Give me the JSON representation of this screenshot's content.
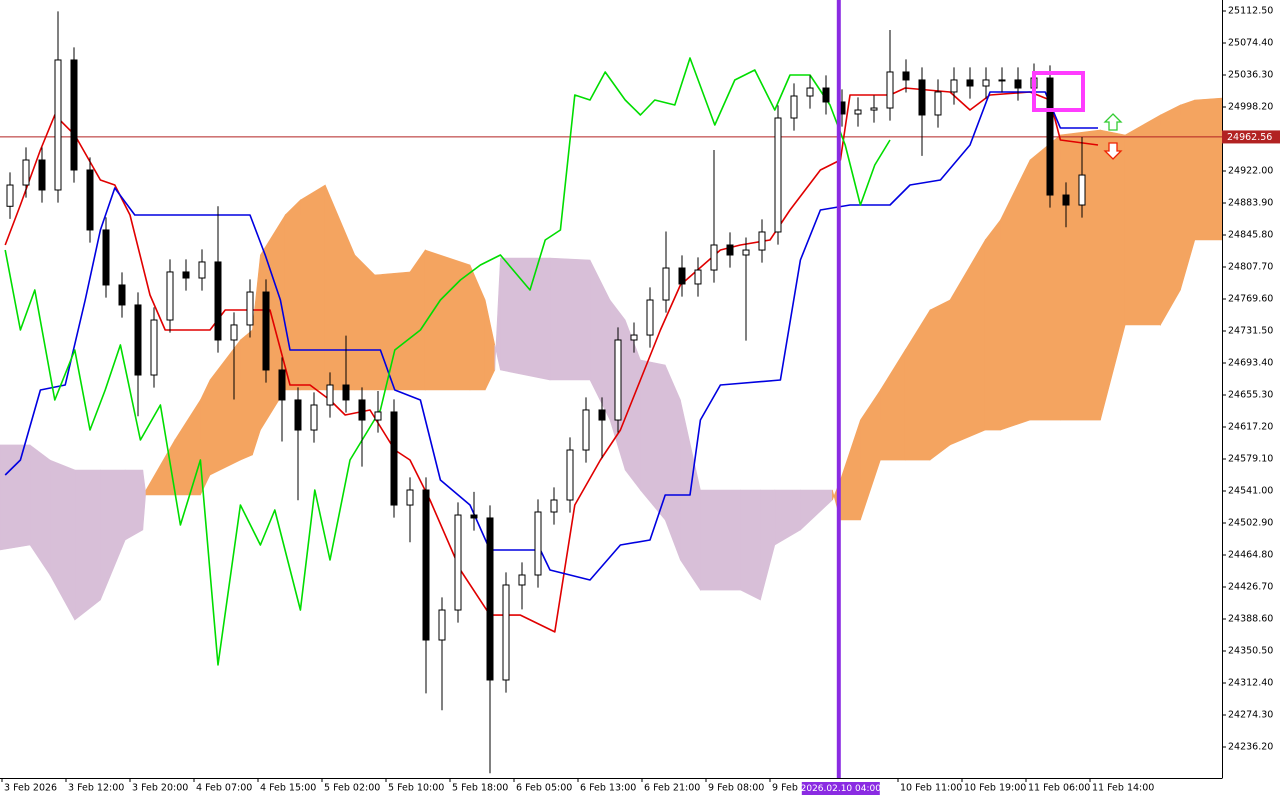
{
  "chart_data": {
    "type": "candlestick",
    "xlim": [
      -0.25,
      152.5
    ],
    "ylim": [
      24199.3,
      25125.6
    ],
    "up_color": "#ffffff",
    "down_color": "#000000",
    "x": [
      1,
      3,
      5,
      7,
      9,
      11,
      13,
      15,
      17,
      19,
      21,
      23,
      25,
      27,
      29,
      31,
      33,
      35,
      37,
      39,
      41,
      43,
      45,
      47,
      49,
      51,
      53,
      55,
      57,
      59,
      61,
      63,
      65,
      67,
      69,
      71,
      73,
      75,
      77,
      79,
      81,
      83,
      85,
      87,
      89,
      91,
      93,
      95,
      97,
      99,
      101,
      103,
      105,
      107,
      109,
      111,
      113,
      115,
      117,
      119,
      121,
      123,
      125,
      127,
      129,
      131,
      133,
      135
    ],
    "open": [
      24880.0,
      24905.3,
      24935.1,
      24899.4,
      25054.2,
      24923.2,
      24851.8,
      24786.3,
      24762.5,
      24679.1,
      24744.6,
      24801.8,
      24794.6,
      24813.7,
      24720.8,
      24738.7,
      24777.9,
      24685.1,
      24649.4,
      24613.6,
      24643.4,
      24667.2,
      24649.4,
      24625.5,
      24635.1,
      24524.3,
      24542.2,
      24363.6,
      24399.3,
      24512.4,
      24508.9,
      24316.0,
      24429.1,
      24441.0,
      24516.0,
      24530.3,
      24589.8,
      24637.5,
      24625.5,
      24720.8,
      24726.7,
      24768.4,
      24806.5,
      24787.5,
      24804.1,
      24833.9,
      24822.0,
      24827.9,
      24849.4,
      24985.1,
      25011.3,
      25020.8,
      25004.2,
      24989.9,
      24994.6,
      24997.0,
      25039.9,
      25030.4,
      24988.7,
      25016.1,
      25030.4,
      25023.2,
      25030.4,
      25030.4,
      25020.8,
      25032.7,
      24893.4,
      24881.5
    ],
    "high": [
      24920.3,
      24950.1,
      24950.1,
      25112.0,
      25069.2,
      24938.2,
      24866.8,
      24801.3,
      24777.5,
      24759.6,
      24816.8,
      24816.8,
      24828.7,
      24880.0,
      24753.7,
      24792.9,
      24792.9,
      24700.1,
      24664.4,
      24658.4,
      24682.2,
      24726.0,
      24664.4,
      24660.0,
      24650.1,
      24557.2,
      24557.2,
      24414.3,
      24527.4,
      24540.0,
      24523.9,
      24444.1,
      24456.0,
      24531.0,
      24545.3,
      24604.8,
      24652.5,
      24652.5,
      24735.8,
      24741.7,
      24783.4,
      24850.0,
      24821.5,
      24819.1,
      24947.0,
      24848.9,
      24842.9,
      24864.4,
      25000.1,
      25026.3,
      25035.8,
      25035.8,
      25019.2,
      25009.6,
      25012.0,
      25089.9,
      25054.9,
      25045.4,
      25031.1,
      25045.4,
      25045.4,
      25045.4,
      25045.4,
      25045.4,
      25050.0,
      25047.7,
      24908.4,
      24962.5
    ],
    "low": [
      24865.0,
      24890.3,
      24884.4,
      24884.4,
      24908.2,
      24836.8,
      24771.3,
      24747.5,
      24630.0,
      24664.1,
      24729.6,
      24779.6,
      24779.6,
      24705.8,
      24650.0,
      24723.7,
      24670.1,
      24600.0,
      24530.0,
      24598.6,
      24628.4,
      24634.4,
      24570.0,
      24610.5,
      24509.3,
      24480.0,
      24300.0,
      24280.0,
      24384.3,
      24493.9,
      24205.0,
      24301.0,
      24400.0,
      24426.0,
      24501.0,
      24515.3,
      24574.8,
      24580.0,
      24610.5,
      24705.8,
      24711.7,
      24753.4,
      24772.5,
      24772.5,
      24789.1,
      24807.0,
      24720.0,
      24812.9,
      24834.4,
      24970.1,
      24996.3,
      24989.2,
      24974.9,
      24974.9,
      24979.6,
      24982.0,
      25015.4,
      24940.0,
      24973.7,
      25001.1,
      25008.2,
      25008.2,
      25015.4,
      25005.8,
      25005.8,
      24878.4,
      24855.0,
      24866.5
    ],
    "close": [
      24905.3,
      24935.1,
      24899.4,
      25054.2,
      24923.2,
      24851.8,
      24786.3,
      24762.5,
      24679.1,
      24744.6,
      24801.8,
      24794.6,
      24813.7,
      24720.8,
      24738.7,
      24777.9,
      24685.1,
      24649.4,
      24613.6,
      24643.4,
      24667.2,
      24649.4,
      24625.5,
      24635.1,
      24524.3,
      24542.2,
      24363.6,
      24399.3,
      24512.4,
      24508.9,
      24316.0,
      24429.1,
      24441.0,
      24516.0,
      24530.3,
      24589.8,
      24637.5,
      24625.5,
      24720.8,
      24726.7,
      24768.4,
      24806.5,
      24787.5,
      24804.1,
      24833.9,
      24822.0,
      24827.9,
      24849.4,
      24985.1,
      25011.3,
      25020.8,
      25004.2,
      24989.9,
      24994.6,
      24997.0,
      25039.9,
      25030.4,
      24988.7,
      25016.1,
      25030.4,
      25023.2,
      25030.4,
      25030.4,
      25020.8,
      25032.7,
      24893.4,
      24881.5,
      24917.2
    ],
    "cloud": {
      "bull_color": "#f4a460",
      "bear_color": "#d8bfd8",
      "x": [
        -0.25,
        3.5,
        6,
        9.1,
        12.3,
        15.4,
        17.6,
        18,
        21.6,
        24.8,
        26,
        29.8,
        31.3,
        32.3,
        35.4,
        37.3,
        40.4,
        44.1,
        46.6,
        51,
        52.9,
        58.5,
        60.4,
        61.6,
        62.3,
        68.5,
        73.5,
        76,
        77.9,
        79.8,
        82.9,
        84.8,
        87.3,
        92.3,
        94.8,
        96.6,
        99.8,
        103.8,
        104.8,
        107.3,
        109.8,
        112.9,
        116,
        118.5,
        122.9,
        124.8,
        128.5,
        132.3,
        137.3,
        140.4,
        144.8,
        147.3,
        149.1,
        152.5
      ],
      "span_a": [
        24470.8,
        24476.7,
        24441.0,
        24387.4,
        24411.2,
        24482.7,
        24494.6,
        24542.2,
        24601.7,
        24649.4,
        24673.2,
        24720.8,
        24732.7,
        24822.0,
        24869.6,
        24887.5,
        24905.3,
        24822.0,
        24798.2,
        24801.8,
        24827.9,
        24810.1,
        24768.4,
        24714.9,
        24685.1,
        24673.2,
        24673.2,
        24625.5,
        24566.0,
        24542.2,
        24506.5,
        24458.9,
        24423.1,
        24423.1,
        24411.2,
        24476.7,
        24494.6,
        24530.3,
        24554.1,
        24625.5,
        24661.3,
        24708.9,
        24756.5,
        24768.4,
        24839.9,
        24863.7,
        24935.1,
        24964.9,
        24970.8,
        24964.9,
        24988.7,
        25000.6,
        25006.5,
        25008.9
      ],
      "span_b": [
        24595.8,
        24595.8,
        24577.9,
        24566.0,
        24566.0,
        24566.0,
        24566.0,
        24536.3,
        24536.3,
        24536.3,
        24560.1,
        24577.9,
        24583.9,
        24613.6,
        24661.3,
        24661.3,
        24661.3,
        24661.3,
        24661.3,
        24661.3,
        24661.3,
        24661.3,
        24661.3,
        24685.1,
        24818.4,
        24818.4,
        24816.0,
        24768.4,
        24744.6,
        24697.0,
        24691.0,
        24649.4,
        24542.2,
        24542.2,
        24542.2,
        24542.2,
        24542.2,
        24542.2,
        24506.5,
        24506.5,
        24577.9,
        24577.9,
        24577.9,
        24595.8,
        24613.6,
        24613.6,
        24625.5,
        24625.5,
        24625.5,
        24738.7,
        24738.7,
        24780.3,
        24839.9,
        24839.9
      ]
    },
    "lines": [
      {
        "color": "#e00000",
        "x": [
          0.4,
          2.3,
          4.8,
          6.6,
          9.1,
          12.3,
          14.1,
          16,
          18.5,
          20.4,
          26,
          27.9,
          33.5,
          36,
          38.5,
          41,
          42.9,
          46,
          49.1,
          51,
          53.5,
          57.3,
          61,
          64.8,
          69.1,
          71.6,
          74.8,
          77.3,
          79.8,
          82.3,
          84.8,
          89.8,
          92.3,
          96,
          98.5,
          102.3,
          104.8,
          106,
          111,
          112.9,
          118.5,
          121,
          123.5,
          128.5,
          131,
          132.3,
          137
        ],
        "values": [
          24833.9,
          24881.5,
          24947.0,
          24988.7,
          24964.9,
          24911.3,
          24905.3,
          24869.6,
          24774.4,
          24732.7,
          24732.7,
          24756.5,
          24756.5,
          24667.2,
          24667.2,
          24649.4,
          24631.5,
          24637.5,
          24589.8,
          24577.9,
          24530.3,
          24446.9,
          24393.2,
          24393.2,
          24373.2,
          24524.3,
          24577.9,
          24613.6,
          24673.2,
          24732.7,
          24786.3,
          24827.9,
          24833.9,
          24839.9,
          24875.6,
          24923.2,
          24935.1,
          25012.5,
          25012.5,
          25020.8,
          25016.1,
          24994.6,
          25012.5,
          25016.1,
          25006.5,
          24958.9,
          24953.0
        ]
      },
      {
        "color": "#0000e0",
        "x": [
          0.4,
          2.3,
          4.8,
          7.9,
          10.4,
          12.3,
          14.1,
          16.6,
          31,
          32.9,
          34.8,
          36,
          47.3,
          49.1,
          52.3,
          54.8,
          58.5,
          61,
          67.3,
          68.5,
          73.5,
          77.3,
          81,
          82.9,
          86,
          87.3,
          89.8,
          97.3,
          99.8,
          102.3,
          106,
          111,
          113.5,
          117.3,
          121,
          123.5,
          130.4,
          132.3,
          137
        ],
        "values": [
          24560.1,
          24577.9,
          24661.3,
          24667.2,
          24768.4,
          24851.8,
          24901.8,
          24869.6,
          24869.6,
          24822.0,
          24768.4,
          24708.9,
          24708.9,
          24661.3,
          24649.4,
          24554.1,
          24524.3,
          24470.8,
          24470.8,
          24447.0,
          24435.1,
          24476.7,
          24482.7,
          24536.3,
          24536.3,
          24625.5,
          24667.2,
          24673.2,
          24816.0,
          24875.6,
          24881.5,
          24881.5,
          24905.3,
          24911.3,
          24953.0,
          25016.1,
          25016.1,
          24973.2,
          24973.2
        ]
      },
      {
        "color": "#00dd00",
        "x": [
          0.4,
          2.3,
          4.1,
          6.6,
          9.1,
          11,
          12.9,
          14.8,
          17.3,
          19.8,
          22.3,
          24.8,
          27,
          29.8,
          32.3,
          34.1,
          37.3,
          39.1,
          41,
          43.5,
          47.3,
          49.1,
          52.3,
          54.8,
          57.3,
          59.8,
          62.3,
          66,
          67.9,
          69.8,
          71.6,
          73.5,
          75.4,
          77.9,
          79.8,
          81.6,
          84.1,
          86,
          89.1,
          91.6,
          94.1,
          96.6,
          98.5,
          101,
          103.5,
          105.4,
          107.3,
          109.1,
          111
        ],
        "values": [
          24828.0,
          24732.7,
          24780.3,
          24649.4,
          24708.9,
          24613.6,
          24661.3,
          24714.9,
          24601.7,
          24643.4,
          24500.5,
          24577.9,
          24333.9,
          24524.3,
          24476.7,
          24518.4,
          24399.3,
          24542.2,
          24458.9,
          24577.9,
          24637.5,
          24708.9,
          24732.7,
          24768.4,
          24792.2,
          24810.1,
          24822.0,
          24780.3,
          24839.9,
          24851.8,
          25012.5,
          25006.5,
          25039.9,
          25006.5,
          24988.7,
          25006.5,
          25000.6,
          25056.5,
          24976.8,
          25030.4,
          25042.3,
          24994.6,
          25036.3,
          25036.3,
          25000.6,
          24953.0,
          24881.5,
          24929.2,
          24958.9
        ]
      }
    ],
    "price_line": {
      "value": 24962.56,
      "color": "#b22222"
    },
    "vline": {
      "x": 104.6,
      "label": "2026.02.10 04:00",
      "color": "#8a2be2"
    },
    "yticks": [
      {
        "value": 25112.5,
        "label": "25112.50"
      },
      {
        "value": 25074.4,
        "label": "25074.40"
      },
      {
        "value": 25036.3,
        "label": "25036.30"
      },
      {
        "value": 24998.2,
        "label": "24998.20"
      },
      {
        "value": 24960.1,
        "label": "24960.10"
      },
      {
        "value": 24922,
        "label": "24922.00"
      },
      {
        "value": 24883.9,
        "label": "24883.90"
      },
      {
        "value": 24845.8,
        "label": "24845.80"
      },
      {
        "value": 24807.7,
        "label": "24807.70"
      },
      {
        "value": 24769.6,
        "label": "24769.60"
      },
      {
        "value": 24731.5,
        "label": "24731.50"
      },
      {
        "value": 24693.4,
        "label": "24693.40"
      },
      {
        "value": 24655.3,
        "label": "24655.30"
      },
      {
        "value": 24617.2,
        "label": "24617.20"
      },
      {
        "value": 24579.1,
        "label": "24579.10"
      },
      {
        "value": 24541,
        "label": "24541.00"
      },
      {
        "value": 24502.9,
        "label": "24502.90"
      },
      {
        "value": 24464.8,
        "label": "24464.80"
      },
      {
        "value": 24426.7,
        "label": "24426.70"
      },
      {
        "value": 24388.6,
        "label": "24388.60"
      },
      {
        "value": 24350.5,
        "label": "24350.50"
      },
      {
        "value": 24312.4,
        "label": "24312.40"
      },
      {
        "value": 24274.3,
        "label": "24274.30"
      },
      {
        "value": 24236.2,
        "label": "24236.20"
      }
    ],
    "xticks": [
      {
        "value": 0,
        "label": "3 Feb 2026"
      },
      {
        "value": 8,
        "label": "3 Feb 12:00"
      },
      {
        "value": 16,
        "label": "3 Feb 20:00"
      },
      {
        "value": 24,
        "label": "4 Feb 07:00"
      },
      {
        "value": 32,
        "label": "4 Feb 15:00"
      },
      {
        "value": 40,
        "label": "5 Feb 02:00"
      },
      {
        "value": 48,
        "label": "5 Feb 10:00"
      },
      {
        "value": 56,
        "label": "5 Feb 18:00"
      },
      {
        "value": 64,
        "label": "6 Feb 05:00"
      },
      {
        "value": 72,
        "label": "6 Feb 13:00"
      },
      {
        "value": 80,
        "label": "6 Feb 21:00"
      },
      {
        "value": 88,
        "label": "9 Feb 08:00"
      },
      {
        "value": 96,
        "label": "9 Feb 16:00"
      },
      {
        "value": 112,
        "label": "10 Feb 11:00"
      },
      {
        "value": 120,
        "label": "10 Feb 19:00"
      },
      {
        "value": 128,
        "label": "11 Feb 06:00"
      },
      {
        "value": 136,
        "label": "11 Feb 14:00"
      }
    ]
  }
}
